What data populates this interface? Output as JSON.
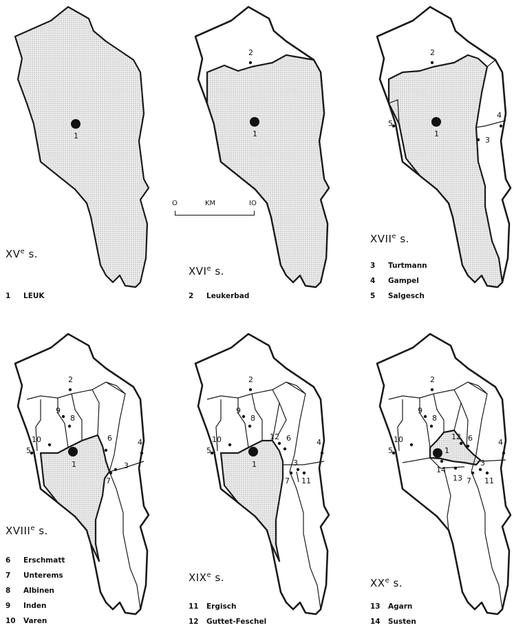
{
  "scale": {
    "start": "O",
    "unit": "KM",
    "end": "IO"
  },
  "panels": [
    {
      "century": "XV",
      "suffix": "e",
      "after": " s.",
      "legend": [
        {
          "n": "1",
          "name": "LEUK"
        }
      ]
    },
    {
      "century": "XVI",
      "suffix": "e",
      "after": " s.",
      "legend": [
        {
          "n": "2",
          "name": "Leukerbad"
        }
      ]
    },
    {
      "century": "XVII",
      "suffix": "e",
      "after": " s.",
      "legend": [
        {
          "n": "3",
          "name": "Turtmann"
        },
        {
          "n": "4",
          "name": "Gampel"
        },
        {
          "n": "5",
          "name": "Salgesch"
        }
      ]
    },
    {
      "century": "XVIII",
      "suffix": "e",
      "after": " s.",
      "legend": [
        {
          "n": "6",
          "name": "Erschmatt"
        },
        {
          "n": "7",
          "name": "Unterems"
        },
        {
          "n": "8",
          "name": "Albinen"
        },
        {
          "n": "9",
          "name": "Inden"
        },
        {
          "n": "10",
          "name": "Varen"
        }
      ]
    },
    {
      "century": "XIX",
      "suffix": "e",
      "after": " s.",
      "legend": [
        {
          "n": "11",
          "name": "Ergisch"
        },
        {
          "n": "12",
          "name": "Guttet-Feschel"
        }
      ]
    },
    {
      "century": "XX",
      "suffix": "e",
      "after": " s.",
      "legend": [
        {
          "n": "13",
          "name": "Agarn"
        },
        {
          "n": "14",
          "name": "Susten"
        }
      ]
    }
  ],
  "map_labels": {
    "leuk": "1",
    "leukerbad": "2",
    "turtmann": "3",
    "gampel": "4",
    "salgesch": "5",
    "erschmatt": "6",
    "unterems": "7",
    "albinen": "8",
    "inden": "9",
    "varen": "10",
    "ergisch": "11",
    "guttet": "12",
    "agarn": "13",
    "susten": "14"
  }
}
